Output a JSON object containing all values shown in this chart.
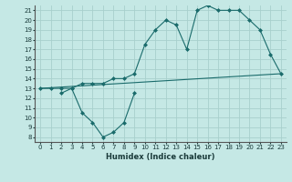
{
  "xlabel": "Humidex (Indice chaleur)",
  "bg_color": "#c5e8e5",
  "grid_color": "#a8d0cc",
  "line_color": "#1a6b6b",
  "xlim": [
    -0.5,
    23.5
  ],
  "ylim": [
    7.5,
    21.5
  ],
  "xticks": [
    0,
    1,
    2,
    3,
    4,
    5,
    6,
    7,
    8,
    9,
    10,
    11,
    12,
    13,
    14,
    15,
    16,
    17,
    18,
    19,
    20,
    21,
    22,
    23
  ],
  "yticks": [
    8,
    9,
    10,
    11,
    12,
    13,
    14,
    15,
    16,
    17,
    18,
    19,
    20,
    21
  ],
  "line2_x": [
    0,
    23
  ],
  "line2_y": [
    13,
    14.5
  ],
  "line3_x": [
    2,
    3,
    4,
    5,
    6,
    7,
    8,
    9
  ],
  "line3_y": [
    12.5,
    13,
    10.5,
    9.5,
    8,
    8.5,
    9.5,
    12.5
  ],
  "line1b_x": [
    0,
    1,
    2,
    3,
    4,
    5,
    6,
    7,
    8,
    9,
    10,
    11,
    12,
    13,
    14,
    15,
    16,
    17,
    18,
    19,
    20,
    21,
    22,
    23
  ],
  "line1b_y": [
    13,
    13,
    13,
    13,
    13.5,
    13.5,
    13.5,
    14,
    14,
    14.5,
    17.5,
    19,
    20,
    19.5,
    17,
    21,
    21.5,
    21,
    21,
    21,
    20,
    19,
    16.5,
    14.5
  ]
}
